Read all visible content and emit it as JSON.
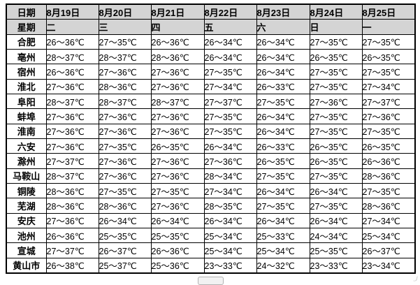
{
  "colors": {
    "header_bg": "#d4d4d4",
    "border": "#000000",
    "text": "#000000"
  },
  "table": {
    "header_row": {
      "label": "日期",
      "dates": [
        "8月19日",
        "8月20日",
        "8月21日",
        "8月22日",
        "8月23日",
        "8月24日",
        "8月25日"
      ]
    },
    "week_row": {
      "label": "星期",
      "days": [
        "二",
        "三",
        "四",
        "五",
        "六",
        "日",
        "一"
      ]
    },
    "cities": [
      {
        "name": "合肥",
        "temps": [
          "26～36℃",
          "27～35℃",
          "26～36℃",
          "26～34℃",
          "26～34℃",
          "27～35℃",
          "27～35℃"
        ]
      },
      {
        "name": "亳州",
        "temps": [
          "28～37℃",
          "28～37℃",
          "28～36℃",
          "26～34℃",
          "26～34℃",
          "26～35℃",
          "26～35℃"
        ]
      },
      {
        "name": "宿州",
        "temps": [
          "26～36℃",
          "27～36℃",
          "27～36℃",
          "27～35℃",
          "26～34℃",
          "27～35℃",
          "27～35℃"
        ]
      },
      {
        "name": "淮北",
        "temps": [
          "27～36℃",
          "28～36℃",
          "27～36℃",
          "27～34℃",
          "26～33℃",
          "27～35℃",
          "27～34℃"
        ]
      },
      {
        "name": "阜阳",
        "temps": [
          "28～37℃",
          "28～37℃",
          "28～37℃",
          "27～37℃",
          "27～35℃",
          "27～36℃",
          "27～37℃"
        ]
      },
      {
        "name": "蚌埠",
        "temps": [
          "27～36℃",
          "27～36℃",
          "27～36℃",
          "27～35℃",
          "26～34℃",
          "27～35℃",
          "27～36℃"
        ]
      },
      {
        "name": "淮南",
        "temps": [
          "27～36℃",
          "27～36℃",
          "27～36℃",
          "27～35℃",
          "26～34℃",
          "27～35℃",
          "27～35℃"
        ]
      },
      {
        "name": "六安",
        "temps": [
          "27～36℃",
          "27～35℃",
          "26～35℃",
          "26～34℃",
          "26～33℃",
          "26～35℃",
          "26～35℃"
        ]
      },
      {
        "name": "滁州",
        "temps": [
          "27～37℃",
          "27～36℃",
          "27～36℃",
          "27～36℃",
          "26～35℃",
          "26～35℃",
          "26～36℃"
        ]
      },
      {
        "name": "马鞍山",
        "temps": [
          "28～37℃",
          "27～36℃",
          "27～36℃",
          "28～34℃",
          "27～35℃",
          "27～35℃",
          "28～36℃"
        ]
      },
      {
        "name": "铜陵",
        "temps": [
          "28～36℃",
          "27～35℃",
          "27～35℃",
          "27～34℃",
          "26～34℃",
          "26～34℃",
          "27～35℃"
        ]
      },
      {
        "name": "芜湖",
        "temps": [
          "28～36℃",
          "28～36℃",
          "27～36℃",
          "28～35℃",
          "27～35℃",
          "27～35℃",
          "28～36℃"
        ]
      },
      {
        "name": "安庆",
        "temps": [
          "27～36℃",
          "26～34℃",
          "26～34℃",
          "26～34℃",
          "26～34℃",
          "26～34℃",
          "27～34℃"
        ]
      },
      {
        "name": "池州",
        "temps": [
          "26～36℃",
          "25～35℃",
          "25～35℃",
          "25～34℃",
          "25～33℃",
          "24～34℃",
          "25～34℃"
        ]
      },
      {
        "name": "宣城",
        "temps": [
          "27～37℃",
          "26～37℃",
          "26～36℃",
          "25～34℃",
          "25～34℃",
          "25～35℃",
          "26～37℃"
        ]
      },
      {
        "name": "黄山市",
        "temps": [
          "26～38℃",
          "25～37℃",
          "25～36℃",
          "23～33℃",
          "24～32℃",
          "23～33℃",
          "23～34℃"
        ]
      }
    ]
  }
}
